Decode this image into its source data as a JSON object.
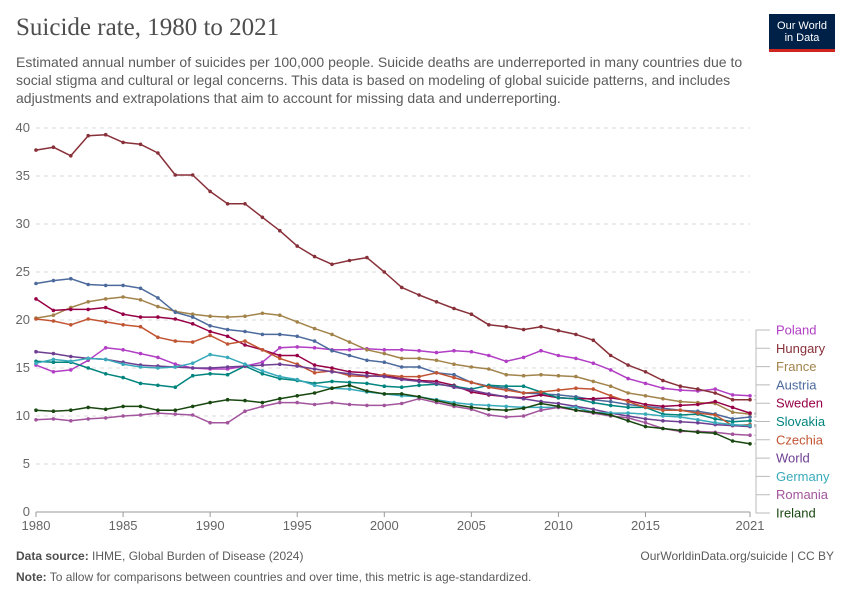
{
  "header": {
    "title": "Suicide rate, 1980 to 2021",
    "subtitle": "Estimated annual number of suicides per 100,000 people. Suicide deaths are underreported in many countries due to social stigma and cultural or legal concerns. This data is based on modeling of global suicide patterns, and includes adjustments and extrapolations that aim to account for missing data and underreporting.",
    "logo_line1": "Our World",
    "logo_line2": "in Data"
  },
  "footer": {
    "source_label": "Data source:",
    "source_text": " IHME, Global Burden of Disease (2024)",
    "citation": "OurWorldinData.org/suicide | CC BY",
    "note_label": "Note:",
    "note_text": " To allow for comparisons between countries and over time, this metric is age-standardized."
  },
  "chart_data": {
    "type": "line",
    "title": "Suicide rate, 1980 to 2021",
    "xlabel": "",
    "ylabel": "",
    "xlim": [
      1980,
      2021
    ],
    "ylim": [
      0,
      40
    ],
    "x_ticks": [
      1980,
      1985,
      1990,
      1995,
      2000,
      2005,
      2010,
      2015,
      2021
    ],
    "y_ticks": [
      0,
      5,
      10,
      15,
      20,
      25,
      30,
      35,
      40
    ],
    "grid": "horizontal dashed",
    "legend": "right",
    "x": [
      1980,
      1981,
      1982,
      1983,
      1984,
      1985,
      1986,
      1987,
      1988,
      1989,
      1990,
      1991,
      1992,
      1993,
      1994,
      1995,
      1996,
      1997,
      1998,
      1999,
      2000,
      2001,
      2002,
      2003,
      2004,
      2005,
      2006,
      2007,
      2008,
      2009,
      2010,
      2011,
      2012,
      2013,
      2014,
      2015,
      2016,
      2017,
      2018,
      2019,
      2020,
      2021
    ],
    "series": [
      {
        "name": "Poland",
        "color": "#b13ec4",
        "values": [
          15.3,
          14.6,
          14.8,
          15.8,
          17.1,
          16.9,
          16.5,
          16.1,
          15.4,
          15.0,
          14.9,
          14.9,
          15.2,
          15.6,
          17.1,
          17.2,
          17.1,
          16.9,
          16.9,
          17.0,
          16.9,
          16.9,
          16.8,
          16.6,
          16.8,
          16.7,
          16.3,
          15.7,
          16.1,
          16.8,
          16.3,
          16.0,
          15.5,
          14.8,
          13.9,
          13.4,
          12.9,
          12.7,
          12.6,
          12.8,
          12.2,
          12.1
        ]
      },
      {
        "name": "Hungary",
        "color": "#883039",
        "values": [
          37.7,
          38.0,
          37.1,
          39.2,
          39.3,
          38.5,
          38.3,
          37.4,
          35.1,
          35.1,
          33.4,
          32.1,
          32.1,
          30.7,
          29.3,
          27.7,
          26.6,
          25.8,
          26.2,
          26.5,
          25.0,
          23.4,
          22.6,
          21.9,
          21.2,
          20.6,
          19.5,
          19.3,
          19.0,
          19.3,
          18.9,
          18.5,
          17.9,
          16.3,
          15.3,
          14.6,
          13.7,
          13.1,
          12.8,
          12.4,
          11.7,
          11.7
        ]
      },
      {
        "name": "France",
        "color": "#a2834a",
        "values": [
          20.2,
          20.5,
          21.3,
          21.9,
          22.2,
          22.4,
          22.1,
          21.4,
          20.9,
          20.6,
          20.4,
          20.3,
          20.4,
          20.7,
          20.5,
          19.8,
          19.1,
          18.5,
          17.7,
          16.9,
          16.5,
          16.0,
          16.0,
          15.8,
          15.4,
          15.1,
          14.9,
          14.3,
          14.2,
          14.3,
          14.2,
          14.1,
          13.6,
          13.1,
          12.4,
          12.1,
          11.8,
          11.5,
          11.4,
          11.3,
          10.4,
          10.2
        ]
      },
      {
        "name": "Austria",
        "color": "#4c6a9c",
        "values": [
          23.8,
          24.1,
          24.3,
          23.7,
          23.6,
          23.6,
          23.3,
          22.3,
          20.8,
          20.3,
          19.4,
          19.0,
          18.8,
          18.5,
          18.5,
          18.3,
          17.8,
          16.8,
          16.3,
          15.8,
          15.6,
          15.1,
          15.1,
          14.5,
          14.3,
          13.5,
          13.1,
          12.9,
          12.4,
          12.3,
          12.2,
          12.0,
          11.7,
          11.5,
          11.2,
          11.0,
          10.8,
          10.6,
          10.5,
          10.2,
          9.7,
          9.9
        ]
      },
      {
        "name": "Sweden",
        "color": "#970046",
        "values": [
          22.2,
          21.0,
          21.1,
          21.1,
          21.3,
          20.6,
          20.3,
          20.3,
          20.1,
          19.6,
          18.8,
          18.3,
          17.4,
          16.9,
          16.3,
          16.3,
          15.3,
          15.0,
          14.6,
          14.5,
          14.2,
          13.9,
          13.7,
          13.6,
          13.2,
          12.5,
          12.2,
          12.0,
          11.9,
          12.2,
          11.9,
          11.8,
          11.8,
          11.9,
          11.6,
          11.2,
          11.0,
          11.1,
          11.2,
          11.5,
          10.9,
          10.3
        ]
      },
      {
        "name": "Slovakia",
        "color": "#00847e",
        "values": [
          15.7,
          15.6,
          15.6,
          15.0,
          14.4,
          14.0,
          13.4,
          13.2,
          13.0,
          14.2,
          14.4,
          14.3,
          15.2,
          14.4,
          13.9,
          13.7,
          13.4,
          13.6,
          13.5,
          13.4,
          13.1,
          13.0,
          13.2,
          13.3,
          13.1,
          12.8,
          13.2,
          13.1,
          13.1,
          12.5,
          11.9,
          11.8,
          11.4,
          11.1,
          10.9,
          10.9,
          10.2,
          10.1,
          10.2,
          9.7,
          9.4,
          9.5
        ]
      },
      {
        "name": "Czechia",
        "color": "#c15533",
        "values": [
          20.1,
          19.9,
          19.5,
          20.1,
          19.8,
          19.5,
          19.3,
          18.2,
          17.8,
          17.7,
          18.4,
          17.5,
          17.8,
          16.9,
          16.0,
          15.4,
          14.5,
          14.7,
          14.2,
          14.1,
          14.3,
          14.1,
          14.1,
          14.5,
          14.0,
          13.5,
          13.0,
          12.7,
          12.4,
          12.5,
          12.7,
          12.9,
          12.8,
          12.1,
          11.5,
          10.9,
          10.6,
          10.6,
          10.3,
          10.1,
          9.0,
          9.1
        ]
      },
      {
        "name": "World",
        "color": "#6d3e91",
        "values": [
          16.7,
          16.5,
          16.2,
          16.0,
          15.9,
          15.6,
          15.3,
          15.2,
          15.1,
          15.0,
          15.0,
          15.1,
          15.2,
          15.3,
          15.4,
          15.2,
          14.9,
          14.6,
          14.4,
          14.2,
          14.1,
          13.8,
          13.6,
          13.4,
          13.0,
          12.7,
          12.3,
          12.0,
          11.8,
          11.5,
          11.3,
          11.0,
          10.7,
          10.3,
          10.0,
          9.7,
          9.5,
          9.4,
          9.3,
          9.1,
          9.0,
          8.9
        ]
      },
      {
        "name": "Germany",
        "color": "#38aaba",
        "values": [
          15.5,
          15.9,
          15.7,
          16.0,
          15.9,
          15.4,
          15.1,
          15.0,
          15.1,
          15.5,
          16.4,
          16.1,
          15.4,
          14.7,
          14.1,
          13.8,
          13.2,
          12.9,
          12.8,
          12.5,
          12.3,
          12.1,
          12.0,
          11.7,
          11.4,
          11.2,
          11.1,
          11.0,
          10.9,
          10.9,
          10.9,
          10.9,
          10.4,
          10.3,
          10.3,
          10.2,
          10.0,
          9.9,
          9.6,
          9.3,
          9.1,
          9.0
        ]
      },
      {
        "name": "Romania",
        "color": "#a2559c",
        "values": [
          9.6,
          9.7,
          9.5,
          9.7,
          9.8,
          10.0,
          10.1,
          10.3,
          10.2,
          10.1,
          9.3,
          9.3,
          10.5,
          11.0,
          11.4,
          11.4,
          11.2,
          11.4,
          11.2,
          11.1,
          11.1,
          11.3,
          11.8,
          11.4,
          11.0,
          10.7,
          10.1,
          9.9,
          10.0,
          10.6,
          10.9,
          10.6,
          10.3,
          10.0,
          9.8,
          9.3,
          8.7,
          8.4,
          8.4,
          8.3,
          8.1,
          8.0
        ]
      },
      {
        "name": "Ireland",
        "color": "#18470f",
        "values": [
          10.6,
          10.5,
          10.6,
          10.9,
          10.7,
          11.0,
          11.0,
          10.6,
          10.6,
          11.0,
          11.4,
          11.7,
          11.6,
          11.4,
          11.8,
          12.1,
          12.4,
          12.9,
          13.2,
          12.6,
          12.3,
          12.3,
          12.0,
          11.6,
          11.2,
          10.9,
          10.7,
          10.6,
          10.8,
          11.3,
          11.0,
          10.6,
          10.4,
          10.1,
          9.5,
          8.9,
          8.7,
          8.5,
          8.3,
          8.2,
          7.4,
          7.1
        ]
      }
    ]
  }
}
